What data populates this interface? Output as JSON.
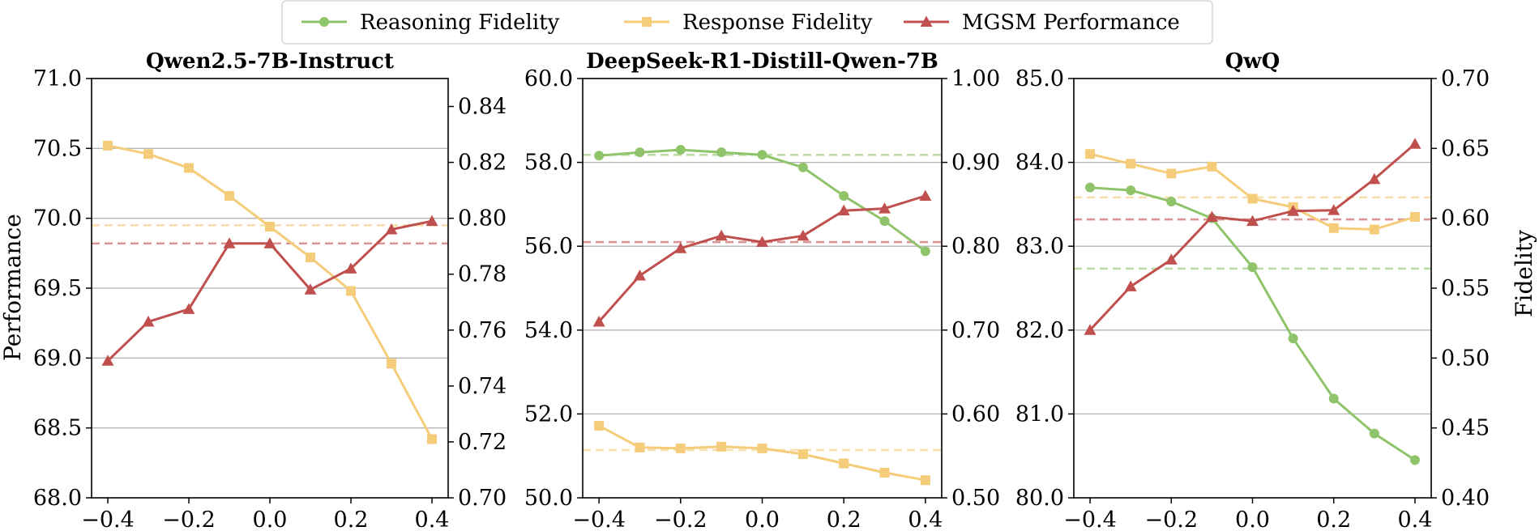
{
  "chart_data": {
    "type": "line",
    "legend": {
      "placement": "top-center",
      "entries": [
        {
          "name": "Reasoning Fidelity",
          "color": "#8fc46b",
          "marker": "circle"
        },
        {
          "name": "Response Fidelity",
          "color": "#f5cd7a",
          "marker": "square"
        },
        {
          "name": "MGSM Performance",
          "color": "#c0504d",
          "marker": "triangle"
        }
      ]
    },
    "shared_x": [
      -0.4,
      -0.3,
      -0.2,
      -0.1,
      0.0,
      0.1,
      0.2,
      0.3,
      0.4
    ],
    "x_tick_labels": [
      "−0.4",
      "−0.2",
      "0.0",
      "0.2",
      "0.4"
    ],
    "x_tick_values": [
      -0.4,
      -0.2,
      0.0,
      0.2,
      0.4
    ],
    "xlim": [
      -0.44,
      0.44
    ],
    "ylabel_left": "Performance",
    "ylabel_right": "Fidelity",
    "panels": [
      {
        "title": "Qwen2.5-7B-Instruct",
        "left_ylim": [
          68.0,
          71.0
        ],
        "left_ticks": [
          "68.0",
          "68.5",
          "69.0",
          "69.5",
          "70.0",
          "70.5",
          "71.0"
        ],
        "left_tick_values": [
          68.0,
          68.5,
          69.0,
          69.5,
          70.0,
          70.5,
          71.0
        ],
        "right_ylim": [
          0.7,
          0.85
        ],
        "right_ticks": [
          "0.70",
          "0.72",
          "0.74",
          "0.76",
          "0.78",
          "0.80",
          "0.82",
          "0.84"
        ],
        "right_tick_values": [
          0.7,
          0.72,
          0.74,
          0.76,
          0.78,
          0.8,
          0.82,
          0.84
        ],
        "grid": [
          68.5,
          69.0,
          69.5,
          70.0,
          70.5
        ],
        "series": [
          {
            "name": "Response Fidelity",
            "axis": "right",
            "values": [
              0.826,
              0.823,
              0.818,
              0.808,
              0.797,
              0.786,
              0.774,
              0.748,
              0.721
            ]
          },
          {
            "name": "MGSM Performance",
            "axis": "left",
            "values": [
              68.98,
              69.26,
              69.35,
              69.82,
              69.82,
              69.49,
              69.64,
              69.92,
              69.98
            ]
          }
        ],
        "baselines": [
          {
            "name": "Response Fidelity",
            "axis": "right",
            "value": 0.7975
          },
          {
            "name": "MGSM Performance",
            "axis": "left",
            "value": 69.82
          }
        ]
      },
      {
        "title": "DeepSeek-R1-Distill-Qwen-7B",
        "left_ylim": [
          50.0,
          60.0
        ],
        "left_ticks": [
          "50.0",
          "52.0",
          "54.0",
          "56.0",
          "58.0",
          "60.0"
        ],
        "left_tick_values": [
          50.0,
          52.0,
          54.0,
          56.0,
          58.0,
          60.0
        ],
        "right_ylim": [
          0.5,
          1.0
        ],
        "right_ticks": [
          "0.50",
          "0.60",
          "0.70",
          "0.80",
          "0.90",
          "1.00"
        ],
        "right_tick_values": [
          0.5,
          0.6,
          0.7,
          0.8,
          0.9,
          1.0
        ],
        "grid": [
          52.0,
          54.0,
          56.0,
          58.0
        ],
        "series": [
          {
            "name": "Reasoning Fidelity",
            "axis": "right",
            "values": [
              0.908,
              0.912,
              0.915,
              0.912,
              0.909,
              0.894,
              0.86,
              0.83,
              0.794
            ]
          },
          {
            "name": "Response Fidelity",
            "axis": "right",
            "values": [
              0.586,
              0.56,
              0.559,
              0.561,
              0.559,
              0.552,
              0.541,
              0.53,
              0.521
            ]
          },
          {
            "name": "MGSM Performance",
            "axis": "left",
            "values": [
              54.2,
              55.3,
              55.95,
              56.25,
              56.1,
              56.25,
              56.85,
              56.9,
              57.2
            ]
          }
        ],
        "baselines": [
          {
            "name": "Reasoning Fidelity",
            "axis": "right",
            "value": 0.909
          },
          {
            "name": "Response Fidelity",
            "axis": "right",
            "value": 0.557
          },
          {
            "name": "MGSM Performance",
            "axis": "left",
            "value": 56.1
          }
        ]
      },
      {
        "title": "QwQ",
        "left_ylim": [
          80.0,
          85.0
        ],
        "left_ticks": [
          "80.0",
          "81.0",
          "82.0",
          "83.0",
          "84.0",
          "85.0"
        ],
        "left_tick_values": [
          80.0,
          81.0,
          82.0,
          83.0,
          84.0,
          85.0
        ],
        "right_ylim": [
          0.4,
          0.7
        ],
        "right_ticks": [
          "0.40",
          "0.45",
          "0.50",
          "0.55",
          "0.60",
          "0.65",
          "0.70"
        ],
        "right_tick_values": [
          0.4,
          0.45,
          0.5,
          0.55,
          0.6,
          0.65,
          0.7
        ],
        "grid": [
          81.0,
          82.0,
          83.0,
          84.0
        ],
        "series": [
          {
            "name": "Reasoning Fidelity",
            "axis": "right",
            "values": [
              0.622,
              0.62,
              0.612,
              0.6,
              0.565,
              0.514,
              0.471,
              0.446,
              0.427
            ]
          },
          {
            "name": "Response Fidelity",
            "axis": "right",
            "values": [
              0.646,
              0.639,
              0.632,
              0.637,
              0.614,
              0.608,
              0.593,
              0.592,
              0.601
            ]
          },
          {
            "name": "MGSM Performance",
            "axis": "left",
            "values": [
              82.0,
              82.52,
              82.84,
              83.35,
              83.3,
              83.42,
              83.43,
              83.8,
              84.22
            ]
          }
        ],
        "baselines": [
          {
            "name": "Reasoning Fidelity",
            "axis": "right",
            "value": 0.564
          },
          {
            "name": "Response Fidelity",
            "axis": "right",
            "value": 0.615
          },
          {
            "name": "MGSM Performance",
            "axis": "left",
            "value": 83.32
          }
        ]
      }
    ]
  }
}
